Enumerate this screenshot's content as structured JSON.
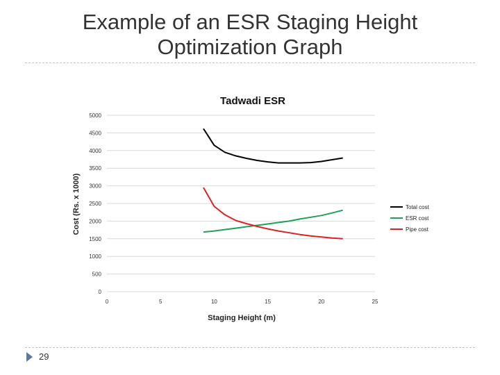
{
  "slide": {
    "title_line1": "Example of an ESR Staging Height",
    "title_line2": "Optimization Graph",
    "page_number": "29"
  },
  "chart_data": {
    "type": "line",
    "title": "Tadwadi ESR",
    "xlabel": "Staging Height (m)",
    "ylabel": "Cost (Rs. x 1000)",
    "xlim": [
      0,
      25
    ],
    "ylim": [
      0,
      5000
    ],
    "x_ticks": [
      0,
      5,
      10,
      15,
      20,
      25
    ],
    "y_ticks": [
      0,
      500,
      1000,
      1500,
      2000,
      2500,
      3000,
      3500,
      4000,
      4500,
      5000
    ],
    "grid": true,
    "legend_position": "right",
    "series": [
      {
        "name": "Total cost",
        "color": "#000000",
        "x": [
          9,
          10,
          11,
          12,
          13,
          14,
          15,
          16,
          17,
          18,
          19,
          20,
          21,
          22
        ],
        "values": [
          4620,
          4150,
          3950,
          3850,
          3780,
          3720,
          3680,
          3650,
          3650,
          3650,
          3660,
          3690,
          3740,
          3790
        ]
      },
      {
        "name": "ESR cost",
        "color": "#1fa15a",
        "x": [
          9,
          10,
          11,
          12,
          13,
          14,
          15,
          16,
          17,
          18,
          19,
          20,
          21,
          22
        ],
        "values": [
          1690,
          1720,
          1760,
          1800,
          1840,
          1880,
          1920,
          1960,
          2000,
          2060,
          2110,
          2160,
          2230,
          2310
        ]
      },
      {
        "name": "Pipe cost",
        "color": "#e02020",
        "x": [
          9,
          10,
          11,
          12,
          13,
          14,
          15,
          16,
          17,
          18,
          19,
          20,
          21,
          22
        ],
        "values": [
          2950,
          2420,
          2180,
          2020,
          1930,
          1850,
          1780,
          1720,
          1670,
          1620,
          1580,
          1550,
          1520,
          1500
        ]
      }
    ]
  }
}
